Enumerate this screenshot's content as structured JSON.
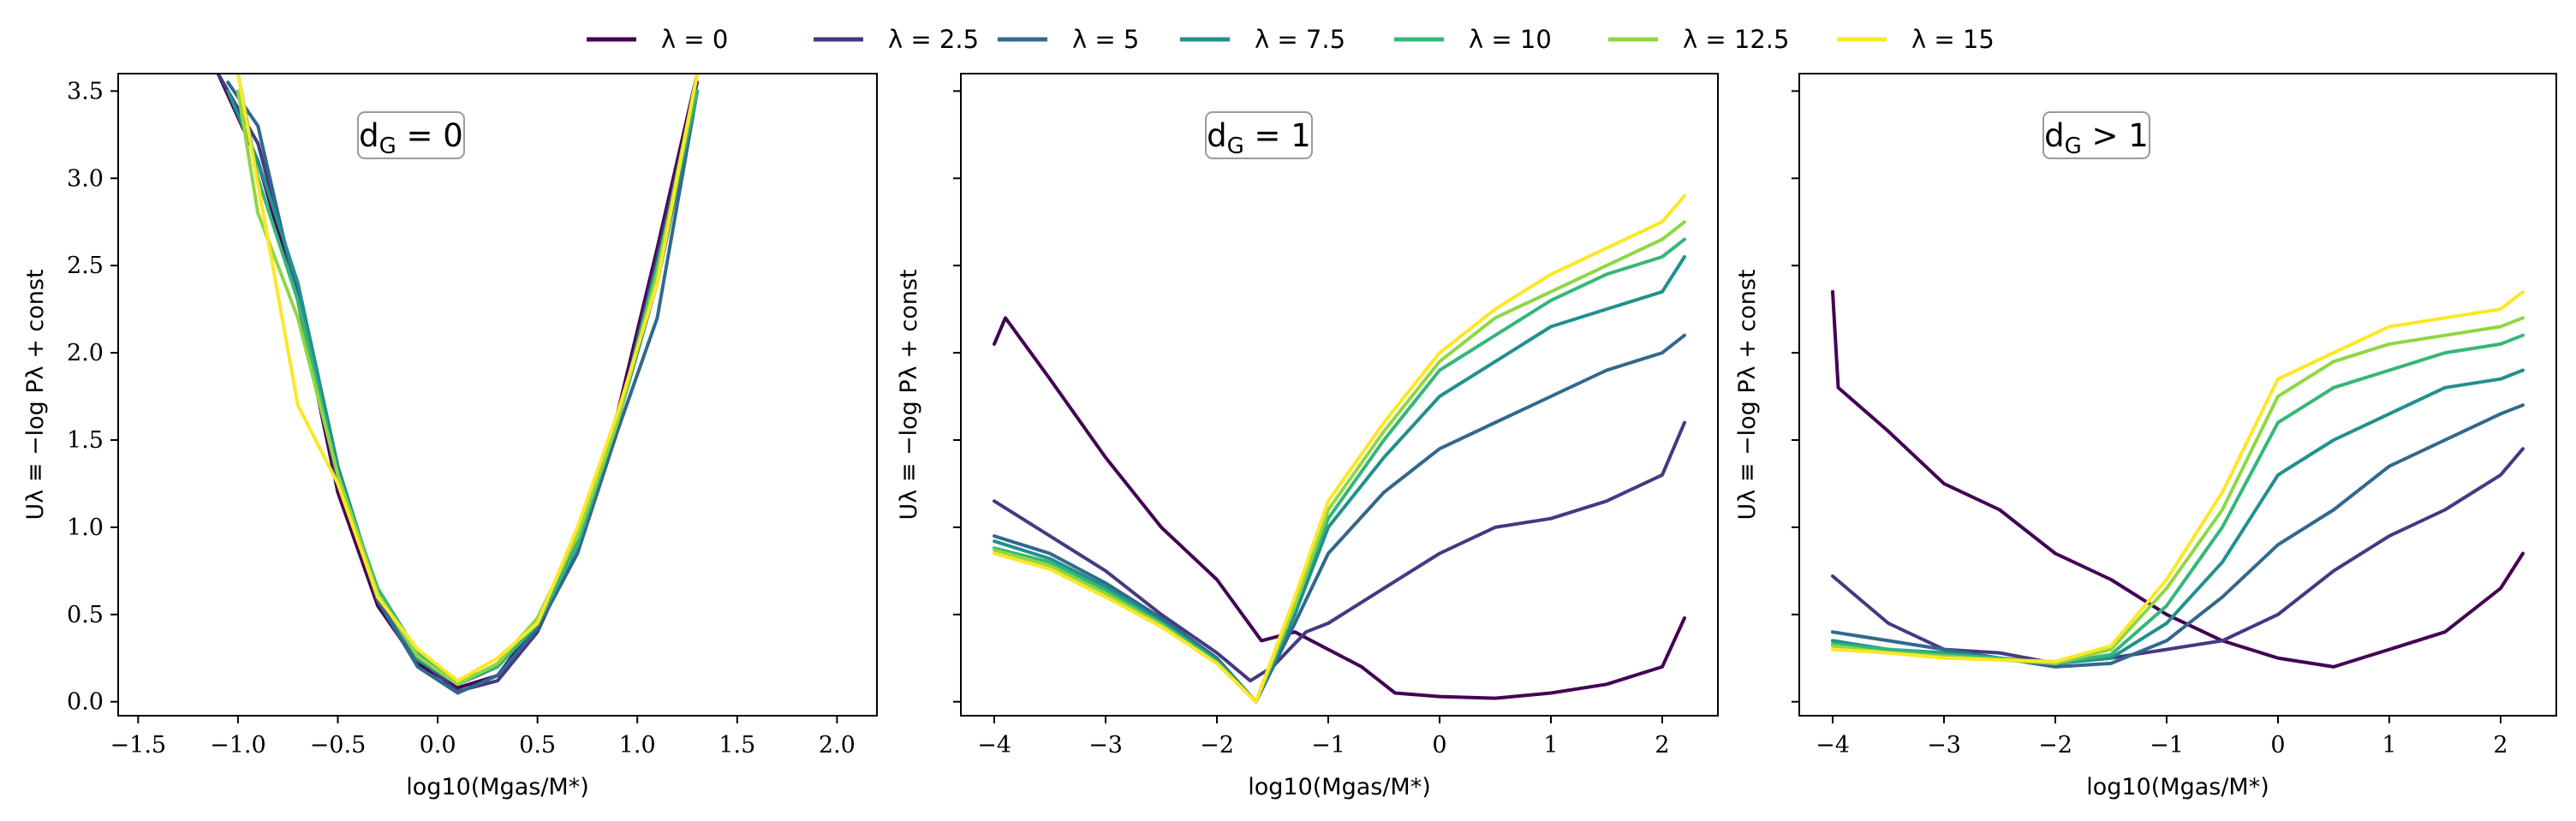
{
  "legend": {
    "entries": [
      {
        "label": "λ = 0",
        "color": "#440154"
      },
      {
        "label": "λ = 2.5",
        "color": "#443983"
      },
      {
        "label": "λ = 5",
        "color": "#31688e"
      },
      {
        "label": "λ = 7.5",
        "color": "#21918c"
      },
      {
        "label": "λ = 10",
        "color": "#35b779"
      },
      {
        "label": "λ = 12.5",
        "color": "#90d743"
      },
      {
        "label": "λ = 15",
        "color": "#fde725"
      }
    ]
  },
  "chart_data": [
    {
      "type": "line",
      "annotation": "d_G = 0",
      "xlabel": "log10(Mgas/M*)",
      "ylabel": "Uλ ≡ −log Pλ + const",
      "xlim": [
        -1.6,
        2.2
      ],
      "ylim": [
        -0.08,
        3.6
      ],
      "xticks": [
        -1.5,
        -1.0,
        -0.5,
        0.0,
        0.5,
        1.0,
        1.5,
        2.0
      ],
      "xtick_labels": [
        "−1.5",
        "−1.0",
        "−0.5",
        "0.0",
        "0.5",
        "1.0",
        "1.5",
        "2.0"
      ],
      "yticks": [
        0.0,
        0.5,
        1.0,
        1.5,
        2.0,
        2.5,
        3.0,
        3.5
      ],
      "ytick_labels": [
        "0.0",
        "0.5",
        "1.0",
        "1.5",
        "2.0",
        "2.5",
        "3.0",
        "3.5"
      ],
      "series": [
        {
          "name": "λ = 0",
          "x": [
            -1.1,
            -0.9,
            -0.7,
            -0.5,
            -0.3,
            -0.1,
            0.1,
            0.3,
            0.5,
            0.7,
            0.9,
            1.1,
            1.3
          ],
          "y": [
            3.6,
            3.1,
            2.3,
            1.2,
            0.55,
            0.22,
            0.08,
            0.15,
            0.45,
            0.95,
            1.65,
            2.6,
            3.6
          ]
        },
        {
          "name": "λ = 2.5",
          "x": [
            -1.1,
            -0.9,
            -0.7,
            -0.5,
            -0.3,
            -0.1,
            0.1,
            0.3,
            0.5,
            0.7,
            0.9,
            1.1,
            1.3
          ],
          "y": [
            3.6,
            3.2,
            2.35,
            1.25,
            0.6,
            0.25,
            0.06,
            0.12,
            0.4,
            0.9,
            1.6,
            2.55,
            3.55
          ]
        },
        {
          "name": "λ = 5",
          "x": [
            -1.05,
            -0.9,
            -0.7,
            -0.5,
            -0.3,
            -0.1,
            0.1,
            0.3,
            0.5,
            0.7,
            0.9,
            1.1,
            1.3
          ],
          "y": [
            3.55,
            3.3,
            2.3,
            1.3,
            0.58,
            0.2,
            0.05,
            0.15,
            0.42,
            0.85,
            1.55,
            2.2,
            3.5
          ]
        },
        {
          "name": "λ = 7.5",
          "x": [
            -1.05,
            -0.9,
            -0.7,
            -0.5,
            -0.3,
            -0.1,
            0.1,
            0.3,
            0.5,
            0.7,
            0.9,
            1.1,
            1.3
          ],
          "y": [
            3.5,
            3.1,
            2.4,
            1.35,
            0.62,
            0.24,
            0.1,
            0.2,
            0.44,
            0.9,
            1.6,
            2.4,
            3.5
          ]
        },
        {
          "name": "λ = 10",
          "x": [
            -1.0,
            -0.9,
            -0.7,
            -0.5,
            -0.3,
            -0.1,
            0.1,
            0.3,
            0.5,
            0.7,
            0.9,
            1.1,
            1.3
          ],
          "y": [
            3.6,
            3.0,
            2.3,
            1.3,
            0.65,
            0.28,
            0.12,
            0.2,
            0.45,
            0.9,
            1.6,
            2.5,
            3.5
          ]
        },
        {
          "name": "λ = 12.5",
          "x": [
            -1.0,
            -0.9,
            -0.7,
            -0.5,
            -0.3,
            -0.1,
            0.1,
            0.3,
            0.5,
            0.7,
            0.9,
            1.1,
            1.3
          ],
          "y": [
            3.5,
            2.8,
            2.2,
            1.3,
            0.62,
            0.26,
            0.1,
            0.22,
            0.48,
            0.95,
            1.6,
            2.45,
            3.6
          ]
        },
        {
          "name": "λ = 15",
          "x": [
            -1.0,
            -0.85,
            -0.7,
            -0.5,
            -0.3,
            -0.1,
            0.1,
            0.3,
            0.5,
            0.7,
            0.9,
            1.1,
            1.3
          ],
          "y": [
            3.6,
            2.65,
            1.7,
            1.25,
            0.6,
            0.3,
            0.12,
            0.25,
            0.45,
            1.0,
            1.65,
            2.4,
            3.6
          ]
        }
      ]
    },
    {
      "type": "line",
      "annotation": "d_G = 1",
      "xlabel": "log10(Mgas/M*)",
      "ylabel": "Uλ ≡ −log Pλ + const",
      "xlim": [
        -4.3,
        2.5
      ],
      "ylim": [
        -0.08,
        3.6
      ],
      "xticks": [
        -4,
        -3,
        -2,
        -1,
        0,
        1,
        2
      ],
      "xtick_labels": [
        "−4",
        "−3",
        "−2",
        "−1",
        "0",
        "1",
        "2"
      ],
      "yticks": [
        0.0,
        0.5,
        1.0,
        1.5,
        2.0,
        2.5,
        3.0,
        3.5
      ],
      "ytick_labels": [],
      "series": [
        {
          "name": "λ = 0",
          "x": [
            -4.0,
            -3.9,
            -3.5,
            -3.0,
            -2.5,
            -2.0,
            -1.6,
            -1.3,
            -1.0,
            -0.7,
            -0.4,
            0.0,
            0.5,
            1.0,
            1.5,
            2.0,
            2.2
          ],
          "y": [
            2.05,
            2.2,
            1.85,
            1.4,
            1.0,
            0.7,
            0.35,
            0.4,
            0.3,
            0.2,
            0.05,
            0.03,
            0.02,
            0.05,
            0.1,
            0.2,
            0.48
          ]
        },
        {
          "name": "λ = 2.5",
          "x": [
            -4.0,
            -3.5,
            -3.0,
            -2.5,
            -2.0,
            -1.7,
            -1.5,
            -1.2,
            -1.0,
            -0.5,
            0.0,
            0.5,
            1.0,
            1.5,
            2.0,
            2.2
          ],
          "y": [
            1.15,
            0.95,
            0.75,
            0.5,
            0.28,
            0.12,
            0.2,
            0.4,
            0.45,
            0.65,
            0.85,
            1.0,
            1.05,
            1.15,
            1.3,
            1.6
          ]
        },
        {
          "name": "λ = 5",
          "x": [
            -4.0,
            -3.5,
            -3.0,
            -2.5,
            -2.0,
            -1.65,
            -1.3,
            -1.0,
            -0.5,
            0.0,
            0.5,
            1.0,
            1.5,
            2.0,
            2.2
          ],
          "y": [
            0.95,
            0.85,
            0.68,
            0.48,
            0.25,
            0.0,
            0.45,
            0.85,
            1.2,
            1.45,
            1.6,
            1.75,
            1.9,
            2.0,
            2.1
          ]
        },
        {
          "name": "λ = 7.5",
          "x": [
            -4.0,
            -3.5,
            -3.0,
            -2.5,
            -2.0,
            -1.65,
            -1.3,
            -1.0,
            -0.5,
            0.0,
            0.5,
            1.0,
            1.5,
            2.0,
            2.2
          ],
          "y": [
            0.92,
            0.82,
            0.66,
            0.46,
            0.24,
            0.0,
            0.5,
            1.0,
            1.4,
            1.75,
            1.95,
            2.15,
            2.25,
            2.35,
            2.55
          ]
        },
        {
          "name": "λ = 10",
          "x": [
            -4.0,
            -3.5,
            -3.0,
            -2.5,
            -2.0,
            -1.65,
            -1.3,
            -1.0,
            -0.5,
            0.0,
            0.5,
            1.0,
            1.5,
            2.0,
            2.2
          ],
          "y": [
            0.88,
            0.8,
            0.64,
            0.45,
            0.23,
            0.0,
            0.55,
            1.05,
            1.5,
            1.9,
            2.1,
            2.3,
            2.45,
            2.55,
            2.65
          ]
        },
        {
          "name": "λ = 12.5",
          "x": [
            -4.0,
            -3.5,
            -3.0,
            -2.5,
            -2.0,
            -1.65,
            -1.3,
            -1.0,
            -0.5,
            0.0,
            0.5,
            1.0,
            1.5,
            2.0,
            2.2
          ],
          "y": [
            0.87,
            0.78,
            0.62,
            0.44,
            0.22,
            0.0,
            0.55,
            1.1,
            1.55,
            1.95,
            2.2,
            2.35,
            2.5,
            2.65,
            2.75
          ]
        },
        {
          "name": "λ = 15",
          "x": [
            -4.0,
            -3.5,
            -3.0,
            -2.5,
            -2.0,
            -1.65,
            -1.3,
            -1.0,
            -0.5,
            0.0,
            0.5,
            1.0,
            1.5,
            2.0,
            2.2
          ],
          "y": [
            0.85,
            0.76,
            0.6,
            0.43,
            0.22,
            0.0,
            0.6,
            1.15,
            1.6,
            2.0,
            2.25,
            2.45,
            2.6,
            2.75,
            2.9
          ]
        }
      ]
    },
    {
      "type": "line",
      "annotation": "d_G > 1",
      "xlabel": "log10(Mgas/M*)",
      "ylabel": "Uλ ≡ −log Pλ + const",
      "xlim": [
        -4.3,
        2.5
      ],
      "ylim": [
        -0.08,
        3.6
      ],
      "xticks": [
        -4,
        -3,
        -2,
        -1,
        0,
        1,
        2
      ],
      "xtick_labels": [
        "−4",
        "−3",
        "−2",
        "−1",
        "0",
        "1",
        "2"
      ],
      "yticks": [
        0.0,
        0.5,
        1.0,
        1.5,
        2.0,
        2.5,
        3.0,
        3.5
      ],
      "ytick_labels": [],
      "series": [
        {
          "name": "λ = 0",
          "x": [
            -4.0,
            -3.95,
            -3.5,
            -3.0,
            -2.5,
            -2.0,
            -1.5,
            -1.0,
            -0.5,
            0.0,
            0.5,
            1.0,
            1.5,
            2.0,
            2.2
          ],
          "y": [
            2.35,
            1.8,
            1.55,
            1.25,
            1.1,
            0.85,
            0.7,
            0.5,
            0.35,
            0.25,
            0.2,
            0.3,
            0.4,
            0.65,
            0.85
          ]
        },
        {
          "name": "λ = 2.5",
          "x": [
            -4.0,
            -3.5,
            -3.0,
            -2.5,
            -2.0,
            -1.5,
            -1.0,
            -0.5,
            0.0,
            0.5,
            1.0,
            1.5,
            2.0,
            2.2
          ],
          "y": [
            0.72,
            0.45,
            0.3,
            0.28,
            0.22,
            0.25,
            0.3,
            0.35,
            0.5,
            0.75,
            0.95,
            1.1,
            1.3,
            1.45
          ]
        },
        {
          "name": "λ = 5",
          "x": [
            -4.0,
            -3.5,
            -3.0,
            -2.5,
            -2.0,
            -1.5,
            -1.0,
            -0.5,
            0.0,
            0.5,
            1.0,
            1.5,
            2.0,
            2.2
          ],
          "y": [
            0.4,
            0.35,
            0.3,
            0.25,
            0.2,
            0.22,
            0.35,
            0.6,
            0.9,
            1.1,
            1.35,
            1.5,
            1.65,
            1.7
          ]
        },
        {
          "name": "λ = 7.5",
          "x": [
            -4.0,
            -3.5,
            -3.0,
            -2.5,
            -2.0,
            -1.5,
            -1.0,
            -0.5,
            0.0,
            0.5,
            1.0,
            1.5,
            2.0,
            2.2
          ],
          "y": [
            0.35,
            0.3,
            0.28,
            0.25,
            0.22,
            0.25,
            0.45,
            0.8,
            1.3,
            1.5,
            1.65,
            1.8,
            1.85,
            1.9
          ]
        },
        {
          "name": "λ = 10",
          "x": [
            -4.0,
            -3.5,
            -3.0,
            -2.5,
            -2.0,
            -1.5,
            -1.0,
            -0.5,
            0.0,
            0.5,
            1.0,
            1.5,
            2.0,
            2.2
          ],
          "y": [
            0.33,
            0.3,
            0.27,
            0.25,
            0.22,
            0.27,
            0.55,
            1.0,
            1.6,
            1.8,
            1.9,
            2.0,
            2.05,
            2.1
          ]
        },
        {
          "name": "λ = 12.5",
          "x": [
            -4.0,
            -3.5,
            -3.0,
            -2.5,
            -2.0,
            -1.5,
            -1.0,
            -0.5,
            0.0,
            0.5,
            1.0,
            1.5,
            2.0,
            2.2
          ],
          "y": [
            0.32,
            0.28,
            0.26,
            0.24,
            0.22,
            0.3,
            0.65,
            1.1,
            1.75,
            1.95,
            2.05,
            2.1,
            2.15,
            2.2
          ]
        },
        {
          "name": "λ = 15",
          "x": [
            -4.0,
            -3.5,
            -3.0,
            -2.5,
            -2.0,
            -1.5,
            -1.0,
            -0.5,
            0.0,
            0.5,
            1.0,
            1.5,
            2.0,
            2.2
          ],
          "y": [
            0.3,
            0.28,
            0.25,
            0.24,
            0.23,
            0.32,
            0.7,
            1.2,
            1.85,
            2.0,
            2.15,
            2.2,
            2.25,
            2.35
          ]
        }
      ]
    }
  ]
}
